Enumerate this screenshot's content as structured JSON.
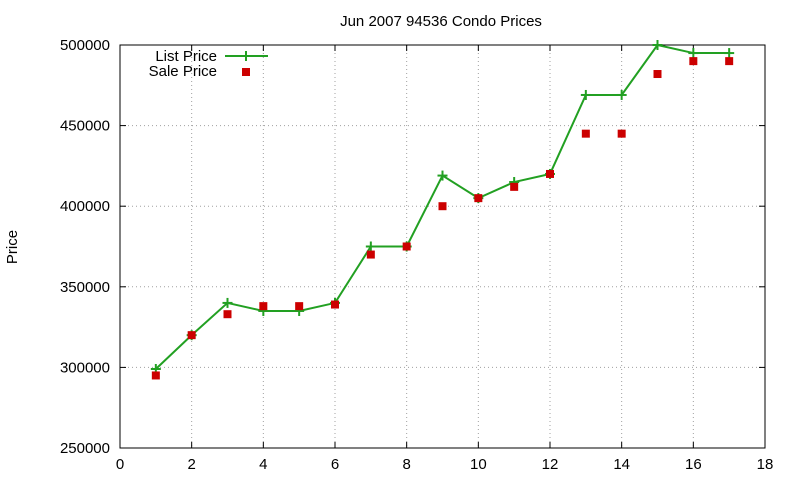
{
  "chart_data": {
    "type": "line",
    "title": "Jun 2007 94536 Condo Prices",
    "xlabel": "",
    "ylabel": "Price",
    "xlim": [
      0,
      18
    ],
    "ylim": [
      250000,
      500000
    ],
    "xticks": [
      0,
      2,
      4,
      6,
      8,
      10,
      12,
      14,
      16,
      18
    ],
    "yticks": [
      250000,
      300000,
      350000,
      400000,
      450000,
      500000
    ],
    "grid": true,
    "legend_position": "top-left",
    "x": [
      1,
      2,
      3,
      4,
      5,
      6,
      7,
      8,
      9,
      10,
      11,
      12,
      13,
      14,
      15,
      16,
      17
    ],
    "series": [
      {
        "name": "List Price",
        "style": "line-with-plus-markers",
        "color": "#22a022",
        "values": [
          299000,
          320000,
          340000,
          335000,
          335000,
          340000,
          375000,
          375000,
          419000,
          405000,
          415000,
          420000,
          469000,
          469000,
          500000,
          495000,
          495000
        ]
      },
      {
        "name": "Sale Price",
        "style": "square-markers",
        "color": "#cc0000",
        "values": [
          295000,
          320000,
          333000,
          338000,
          338000,
          339000,
          370000,
          375000,
          400000,
          405000,
          412000,
          420000,
          445000,
          445000,
          482000,
          490000,
          490000
        ]
      }
    ]
  }
}
